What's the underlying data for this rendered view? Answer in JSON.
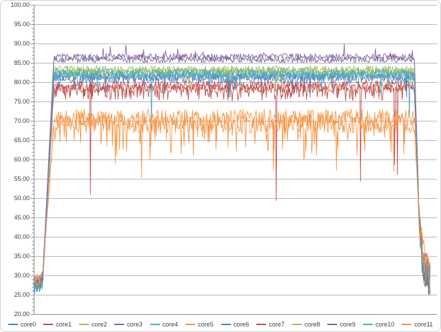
{
  "chart_data": {
    "type": "line",
    "title": "",
    "xlabel": "",
    "ylabel": "",
    "ylim": [
      20,
      100
    ],
    "y_major_step": 5,
    "y_minor_step": 1,
    "y_tick_labels": [
      "100.00",
      "95.00",
      "90.00",
      "85.00",
      "80.00",
      "75.00",
      "70.00",
      "65.00",
      "60.00",
      "55.00",
      "50.00",
      "45.00",
      "40.00",
      "35.00",
      "30.00",
      "25.00",
      "20.00"
    ],
    "x_tick_labels": [],
    "grid": "horizontal-major",
    "legend_position": "bottom",
    "colors": {
      "gridline": "#b8b8b8",
      "axis": "#8d8d8d",
      "tick_text": "#3d3d3d",
      "background": "#ffffff",
      "frame_border": "#d2d2d2"
    },
    "n_points": 560,
    "x_end_fraction": 0.983,
    "phases": {
      "idle_until": 0.022,
      "ramp_until": 0.05,
      "drop_from": 0.944,
      "tail_from": 0.956
    },
    "series": [
      {
        "name": "core0",
        "color": "#4F81BD",
        "plateau": 81.6,
        "idle": 28.0,
        "noise": 1.2,
        "noise_idle": 1.6,
        "noise_tail": 4.2,
        "dips": [
          [
            0.012,
            76
          ]
        ],
        "up": [
          0,
          0
        ],
        "end_level": 29,
        "seed": 11,
        "anchors": [
          [
            0,
            27.5
          ],
          [
            0.022,
            28.2
          ],
          [
            0.05,
            81.6
          ],
          [
            0.944,
            81.6
          ],
          [
            0.956,
            44
          ],
          [
            0.966,
            33
          ],
          [
            0.983,
            29
          ]
        ]
      },
      {
        "name": "core1",
        "color": "#C0504D",
        "plateau": 79.2,
        "idle": 28.5,
        "noise": 1.2,
        "noise_idle": 1.6,
        "noise_tail": 4.2,
        "dips": [
          [
            0.1,
            75.5
          ],
          [
            0.004,
            49
          ]
        ],
        "up": [
          0,
          0
        ],
        "end_level": 29,
        "seed": 22,
        "anchors": [
          [
            0,
            28
          ],
          [
            0.022,
            28.6
          ],
          [
            0.05,
            79.2
          ],
          [
            0.944,
            79.2
          ],
          [
            0.956,
            44
          ],
          [
            0.966,
            33
          ],
          [
            0.983,
            29
          ]
        ]
      },
      {
        "name": "core2",
        "color": "#9BBB59",
        "plateau": 83.2,
        "idle": 28.0,
        "noise": 1.0,
        "noise_idle": 1.5,
        "noise_tail": 4.0,
        "dips": [
          [
            0.01,
            78
          ]
        ],
        "up": [
          0,
          0
        ],
        "end_level": 30,
        "seed": 33,
        "anchors": [
          [
            0,
            27.8
          ],
          [
            0.022,
            28.4
          ],
          [
            0.05,
            83.2
          ],
          [
            0.944,
            83.2
          ],
          [
            0.956,
            45
          ],
          [
            0.966,
            33
          ],
          [
            0.983,
            30
          ]
        ]
      },
      {
        "name": "core3",
        "color": "#8064A2",
        "plateau": 86.6,
        "idle": 28.5,
        "noise": 0.8,
        "noise_idle": 1.5,
        "noise_tail": 4.2,
        "dips": [
          [
            0.0015,
            52
          ]
        ],
        "up": [
          0.03,
          1.7
        ],
        "end_level": 30,
        "seed": 44,
        "anchors": [
          [
            0,
            28.2
          ],
          [
            0.022,
            29
          ],
          [
            0.05,
            86.6
          ],
          [
            0.944,
            86.6
          ],
          [
            0.956,
            46
          ],
          [
            0.966,
            34
          ],
          [
            0.983,
            30
          ]
        ]
      },
      {
        "name": "core4",
        "color": "#4BACC6",
        "plateau": 82.4,
        "idle": 27.5,
        "noise": 1.2,
        "noise_idle": 1.6,
        "noise_tail": 4.2,
        "dips": [
          [
            0.008,
            77
          ],
          [
            0.003,
            63
          ]
        ],
        "up": [
          0,
          0
        ],
        "end_level": 28,
        "seed": 55,
        "anchors": [
          [
            0,
            27.2
          ],
          [
            0.022,
            27.8
          ],
          [
            0.05,
            82.4
          ],
          [
            0.944,
            82.4
          ],
          [
            0.956,
            44
          ],
          [
            0.966,
            32
          ],
          [
            0.983,
            28
          ]
        ]
      },
      {
        "name": "core5",
        "color": "#F79646",
        "plateau": 70.8,
        "idle": 28.5,
        "noise": 2.2,
        "noise_idle": 1.7,
        "noise_tail": 4.5,
        "dips": [
          [
            0.07,
            63
          ],
          [
            0.004,
            55
          ]
        ],
        "up": [
          0,
          0
        ],
        "end_level": 31,
        "seed": 66,
        "anchors": [
          [
            0,
            28.2
          ],
          [
            0.022,
            29
          ],
          [
            0.05,
            70.8
          ],
          [
            0.944,
            70.8
          ],
          [
            0.956,
            46
          ],
          [
            0.966,
            35
          ],
          [
            0.983,
            31
          ]
        ]
      },
      {
        "name": "core6",
        "color": "#4F81BD",
        "plateau": 80.9,
        "idle": 27.0,
        "noise": 1.2,
        "noise_idle": 1.6,
        "noise_tail": 4.2,
        "dips": [
          [
            0.012,
            76
          ]
        ],
        "up": [
          0,
          0
        ],
        "end_level": 29,
        "seed": 77,
        "anchors": [
          [
            0,
            26.8
          ],
          [
            0.022,
            27.4
          ],
          [
            0.05,
            80.9
          ],
          [
            0.944,
            80.9
          ],
          [
            0.956,
            43
          ],
          [
            0.966,
            32
          ],
          [
            0.983,
            29
          ]
        ]
      },
      {
        "name": "core7",
        "color": "#C0504D",
        "plateau": 78.4,
        "idle": 28.0,
        "noise": 1.2,
        "noise_idle": 1.6,
        "noise_tail": 4.2,
        "dips": [
          [
            0.09,
            75
          ],
          [
            0.003,
            50
          ]
        ],
        "up": [
          0,
          0
        ],
        "end_level": 28,
        "seed": 88,
        "anchors": [
          [
            0,
            27.6
          ],
          [
            0.022,
            28.2
          ],
          [
            0.05,
            78.4
          ],
          [
            0.944,
            78.4
          ],
          [
            0.956,
            43
          ],
          [
            0.966,
            32
          ],
          [
            0.983,
            28
          ]
        ]
      },
      {
        "name": "core8",
        "color": "#9BBB59",
        "plateau": 82.6,
        "idle": 28.5,
        "noise": 1.0,
        "noise_idle": 1.5,
        "noise_tail": 4.0,
        "dips": [
          [
            0.01,
            77.5
          ]
        ],
        "up": [
          0,
          0
        ],
        "end_level": 30,
        "seed": 99,
        "anchors": [
          [
            0,
            28.2
          ],
          [
            0.022,
            28.8
          ],
          [
            0.05,
            82.6
          ],
          [
            0.944,
            82.6
          ],
          [
            0.956,
            45
          ],
          [
            0.966,
            33
          ],
          [
            0.983,
            30
          ]
        ]
      },
      {
        "name": "core9",
        "color": "#8064A2",
        "plateau": 85.8,
        "idle": 29.0,
        "noise": 0.8,
        "noise_idle": 1.5,
        "noise_tail": 4.2,
        "dips": [],
        "up": [
          0.02,
          1.5
        ],
        "end_level": 30,
        "seed": 110,
        "anchors": [
          [
            0,
            28.6
          ],
          [
            0.022,
            29.4
          ],
          [
            0.05,
            85.8
          ],
          [
            0.944,
            85.8
          ],
          [
            0.956,
            46
          ],
          [
            0.966,
            34
          ],
          [
            0.983,
            30
          ]
        ]
      },
      {
        "name": "core10",
        "color": "#4BACC6",
        "plateau": 81.9,
        "idle": 27.5,
        "noise": 1.2,
        "noise_idle": 1.6,
        "noise_tail": 4.2,
        "dips": [
          [
            0.008,
            76.5
          ],
          [
            0.002,
            64
          ]
        ],
        "up": [
          0,
          0
        ],
        "end_level": 29,
        "seed": 121,
        "anchors": [
          [
            0,
            27.2
          ],
          [
            0.022,
            27.8
          ],
          [
            0.05,
            81.9
          ],
          [
            0.944,
            81.9
          ],
          [
            0.956,
            44
          ],
          [
            0.966,
            32
          ],
          [
            0.983,
            29
          ]
        ]
      },
      {
        "name": "core11",
        "color": "#F79646",
        "plateau": 69.2,
        "idle": 29.0,
        "noise": 2.4,
        "noise_idle": 1.7,
        "noise_tail": 4.5,
        "dips": [
          [
            0.07,
            61
          ],
          [
            0.004,
            54
          ]
        ],
        "up": [
          0,
          0
        ],
        "end_level": 31,
        "seed": 132,
        "anchors": [
          [
            0,
            28.6
          ],
          [
            0.022,
            29.4
          ],
          [
            0.05,
            69.2
          ],
          [
            0.944,
            69.2
          ],
          [
            0.956,
            45
          ],
          [
            0.966,
            34
          ],
          [
            0.983,
            31
          ]
        ]
      }
    ],
    "legend": {
      "entries": [
        {
          "label": "core0",
          "color": "#4F81BD"
        },
        {
          "label": "core1",
          "color": "#C0504D"
        },
        {
          "label": "core2",
          "color": "#9BBB59"
        },
        {
          "label": "core3",
          "color": "#8064A2"
        },
        {
          "label": "core4",
          "color": "#4BACC6"
        },
        {
          "label": "core5",
          "color": "#F79646"
        },
        {
          "label": "core6",
          "color": "#4F81BD"
        },
        {
          "label": "core7",
          "color": "#C0504D"
        },
        {
          "label": "core8",
          "color": "#9BBB59"
        },
        {
          "label": "core9",
          "color": "#8064A2"
        },
        {
          "label": "core10",
          "color": "#4BACC6"
        },
        {
          "label": "core11",
          "color": "#F79646"
        }
      ]
    }
  }
}
